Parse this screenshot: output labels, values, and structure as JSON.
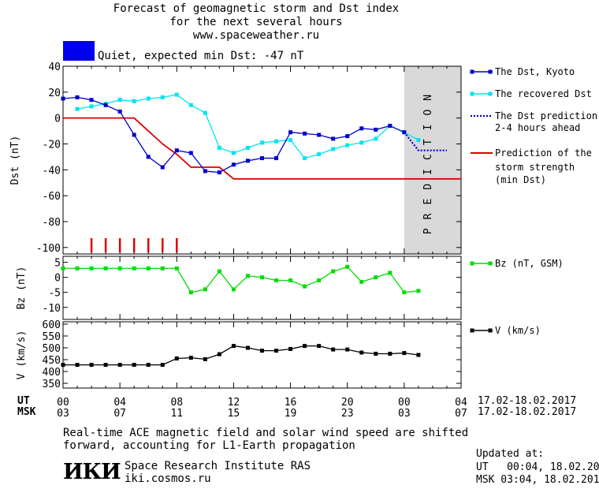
{
  "header": {
    "title_line1": "Forecast of geomagnetic storm and Dst index",
    "title_line2": "for the next several hours",
    "title_line3": "www.spaceweather.ru",
    "status": "Quiet, expected min Dst: -47 nT",
    "status_color": "#0000ee"
  },
  "legend": {
    "dst_kyoto": "The Dst, Kyoto",
    "recovered": "The recovered Dst",
    "prediction_line1": "The Dst prediction",
    "prediction_line2": "2-4 hours ahead",
    "strength_line1": "Prediction of the",
    "strength_line2": "storm strength",
    "strength_line3": "(min Dst)",
    "bz": "Bz (nT, GSM)",
    "v": "V (km/s)"
  },
  "axes": {
    "ut_label": "UT",
    "msk_label": "MSK",
    "ut_ticks": [
      "00",
      "04",
      "08",
      "12",
      "16",
      "20",
      "00",
      "04"
    ],
    "msk_ticks": [
      "03",
      "07",
      "11",
      "15",
      "19",
      "23",
      "03",
      "07"
    ],
    "date_range_ut": "17.02-18.02.2017",
    "date_range_msk": "17.02-18.02.2017",
    "prediction_text": "PREDICTION"
  },
  "footer": {
    "note_line1": "Real-time ACE magnetic field and solar wind speed are shifted",
    "note_line2": "forward, accounting for L1-Earth propagation",
    "logo": "ИКИ",
    "institute": "Space Research Institute RAS",
    "site": "iki.cosmos.ru",
    "updated_label": "Updated at:",
    "updated_ut": "UT   00:04, 18.02.2017",
    "updated_msk": "MSK 03:04, 18.02.2017"
  },
  "colors": {
    "kyoto": "#0000cc",
    "recovered": "#00e5ee",
    "prediction": "#0000cc",
    "strength": "#dd0000",
    "bz": "#00dd00",
    "v": "#000000",
    "prediction_band": "#d9d9d9"
  },
  "chart_data": [
    {
      "type": "line",
      "ylabel": "Dst (nT)",
      "ylim": [
        -105,
        40
      ],
      "yticks": [
        40,
        20,
        0,
        -20,
        -40,
        -60,
        -80,
        -100
      ],
      "xlim": [
        0,
        28
      ],
      "series": [
        {
          "name": "The Dst, Kyoto",
          "x": [
            0,
            1,
            2,
            3,
            4,
            5,
            6,
            7,
            8,
            9,
            10,
            11,
            12,
            13,
            14,
            15,
            16,
            17,
            18,
            19,
            20,
            21,
            22,
            23,
            24
          ],
          "y": [
            15,
            16,
            14,
            10,
            5,
            -13,
            -30,
            -38,
            -25,
            -27,
            -41,
            -42,
            -36,
            -33,
            -31,
            -31,
            -11,
            -12,
            -13,
            -16,
            -14,
            -8,
            -9,
            -6,
            -11
          ]
        },
        {
          "name": "The recovered Dst",
          "x": [
            1,
            2,
            3,
            4,
            5,
            6,
            7,
            8,
            9,
            10,
            11,
            12,
            13,
            14,
            15,
            16,
            17,
            18,
            19,
            20,
            21,
            22,
            23,
            24,
            25
          ],
          "y": [
            7,
            9,
            11,
            14,
            13,
            15,
            16,
            18,
            10,
            4,
            -23,
            -27,
            -23,
            -19,
            -18,
            -17,
            -31,
            -28,
            -24,
            -21,
            -19,
            -16,
            -6,
            -11,
            -17
          ]
        },
        {
          "name": "The Dst prediction 2-4 hours ahead",
          "x": [
            24,
            25,
            26,
            27
          ],
          "y": [
            -11,
            -25,
            -25,
            -25
          ]
        },
        {
          "name": "Prediction of the storm strength (min Dst)",
          "x": [
            0,
            5,
            6,
            7,
            8,
            9,
            10,
            11,
            12,
            28
          ],
          "y": [
            0,
            0,
            -10,
            -20,
            -28,
            -38,
            -38,
            -38,
            -47,
            -47
          ]
        }
      ],
      "markers": {
        "name": "storm onset marks",
        "x": [
          2,
          3,
          4,
          5,
          6,
          7,
          8
        ]
      },
      "prediction_region": [
        24,
        28
      ]
    },
    {
      "type": "line",
      "ylabel": "Bz (nT)",
      "ylim": [
        -14,
        7
      ],
      "yticks": [
        5,
        0,
        -5,
        -10
      ],
      "xlim": [
        0,
        28
      ],
      "series": [
        {
          "name": "Bz (nT, GSM)",
          "x": [
            0,
            1,
            2,
            3,
            4,
            5,
            6,
            7,
            8,
            9,
            10,
            11,
            12,
            13,
            14,
            15,
            16,
            17,
            18,
            19,
            20,
            21,
            22,
            23,
            24,
            25
          ],
          "y": [
            3,
            3,
            3,
            3,
            3,
            3,
            3,
            3,
            3,
            -5,
            -4,
            2,
            -4,
            0.5,
            0,
            -1,
            -1,
            -3,
            -1,
            2,
            3.5,
            -1.5,
            0,
            1.5,
            -5,
            -4.5
          ]
        }
      ]
    },
    {
      "type": "line",
      "ylabel": "V (km/s)",
      "ylim": [
        330,
        610
      ],
      "yticks": [
        600,
        550,
        500,
        450,
        400,
        350
      ],
      "xlim": [
        0,
        28
      ],
      "series": [
        {
          "name": "V (km/s)",
          "x": [
            0,
            1,
            2,
            3,
            4,
            5,
            6,
            7,
            8,
            9,
            10,
            11,
            12,
            13,
            14,
            15,
            16,
            17,
            18,
            19,
            20,
            21,
            22,
            23,
            24,
            25
          ],
          "y": [
            428,
            428,
            428,
            428,
            428,
            428,
            428,
            428,
            455,
            458,
            452,
            473,
            508,
            500,
            488,
            488,
            495,
            508,
            508,
            493,
            493,
            480,
            475,
            475,
            478,
            470
          ]
        }
      ]
    }
  ]
}
